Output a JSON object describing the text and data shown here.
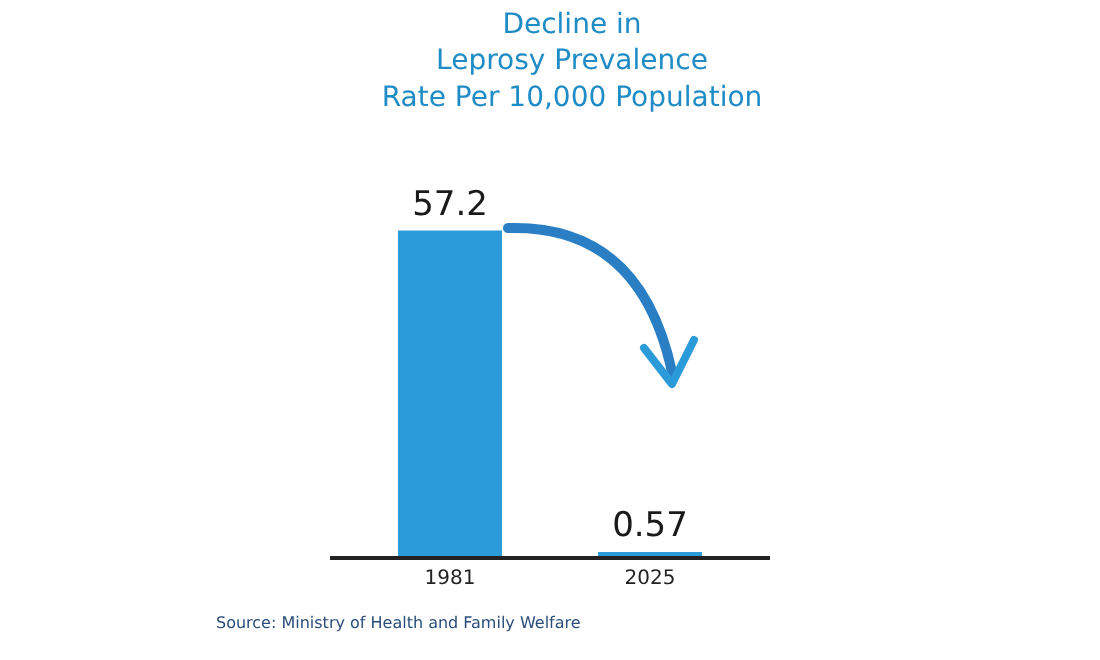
{
  "chart_data": {
    "type": "bar",
    "title": "Decline in\nLeprosy Prevalence\nRate Per 10,000 Population",
    "categories": [
      "1981",
      "2025"
    ],
    "values": [
      57.2,
      0.57
    ],
    "color": "#2c9bd9",
    "data_labels": true,
    "annotations": [
      "Source: Ministry of Health and Family Welfare"
    ]
  }
}
